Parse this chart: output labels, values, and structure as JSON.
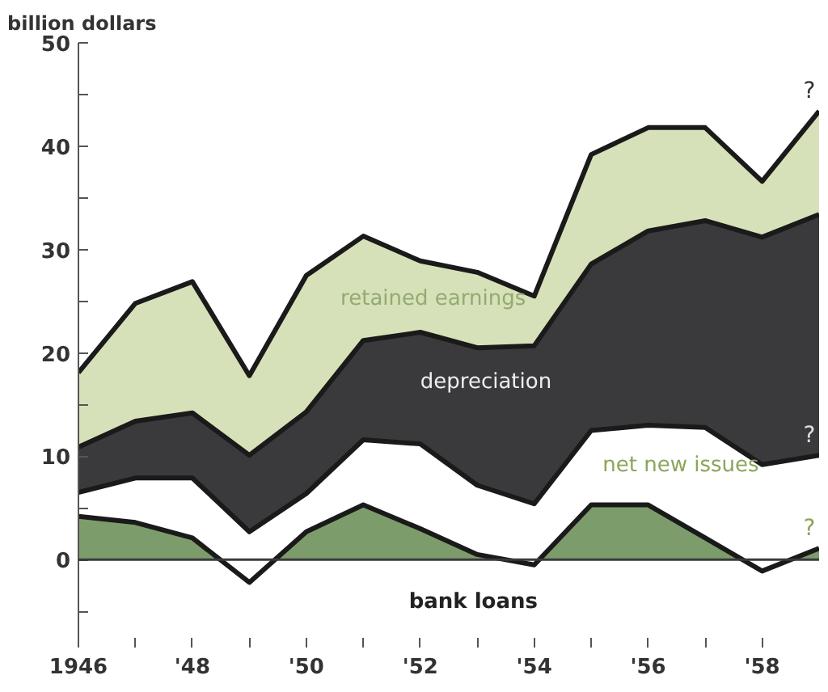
{
  "chart_data": {
    "type": "area",
    "stacked": true,
    "ylabel": "billion dollars",
    "x": [
      1946,
      1947,
      1948,
      1949,
      1950,
      1951,
      1952,
      1953,
      1954,
      1955,
      1956,
      1957,
      1958,
      1959
    ],
    "series": [
      {
        "name": "bank loans",
        "color": "#7d9c6c",
        "values": [
          4.2,
          3.6,
          2.1,
          -2.2,
          2.7,
          5.3,
          3.0,
          0.5,
          -0.5,
          5.3,
          5.3,
          2.1,
          -1.1,
          1.1
        ]
      },
      {
        "name": "net new issues",
        "color": "#ffffff",
        "values": [
          2.3,
          4.3,
          5.8,
          4.9,
          3.7,
          6.3,
          8.2,
          6.7,
          5.9,
          7.2,
          7.7,
          10.7,
          10.3,
          9.0
        ]
      },
      {
        "name": "depreciation",
        "color": "#3a3a3c",
        "values": [
          4.4,
          5.5,
          6.3,
          7.4,
          7.9,
          9.6,
          10.8,
          13.3,
          15.3,
          16.1,
          18.8,
          20.0,
          22.0,
          23.3
        ]
      },
      {
        "name": "retained earnings",
        "color": "#d6e1b9",
        "values": [
          7.2,
          11.4,
          12.7,
          7.7,
          13.2,
          10.1,
          6.9,
          7.3,
          4.8,
          10.6,
          10.0,
          9.0,
          5.4,
          10.0
        ]
      }
    ],
    "xlim": [
      1946,
      1959
    ],
    "ylim": [
      -8.5,
      50
    ],
    "xticks": [
      {
        "value": 1946,
        "label": "1946"
      },
      {
        "value": 1947,
        "label": null
      },
      {
        "value": 1948,
        "label": "'48"
      },
      {
        "value": 1949,
        "label": null
      },
      {
        "value": 1950,
        "label": "'50"
      },
      {
        "value": 1951,
        "label": null
      },
      {
        "value": 1952,
        "label": "'52"
      },
      {
        "value": 1953,
        "label": null
      },
      {
        "value": 1954,
        "label": "'54"
      },
      {
        "value": 1955,
        "label": null
      },
      {
        "value": 1956,
        "label": "'56"
      },
      {
        "value": 1957,
        "label": null
      },
      {
        "value": 1958,
        "label": "'58"
      }
    ],
    "yticks": [
      {
        "value": -5,
        "label": null
      },
      0,
      {
        "value": 5,
        "label": null
      },
      10,
      {
        "value": 15,
        "label": null
      },
      20,
      {
        "value": 25,
        "label": null
      },
      30,
      {
        "value": 35,
        "label": null
      },
      40,
      {
        "value": 45,
        "label": null
      },
      50
    ],
    "ref_lines": [
      {
        "axis": "y",
        "value": 0,
        "label": null,
        "color": "#3a3a3a"
      }
    ],
    "annotations": [
      "?",
      "?",
      "?"
    ],
    "grid": false
  }
}
